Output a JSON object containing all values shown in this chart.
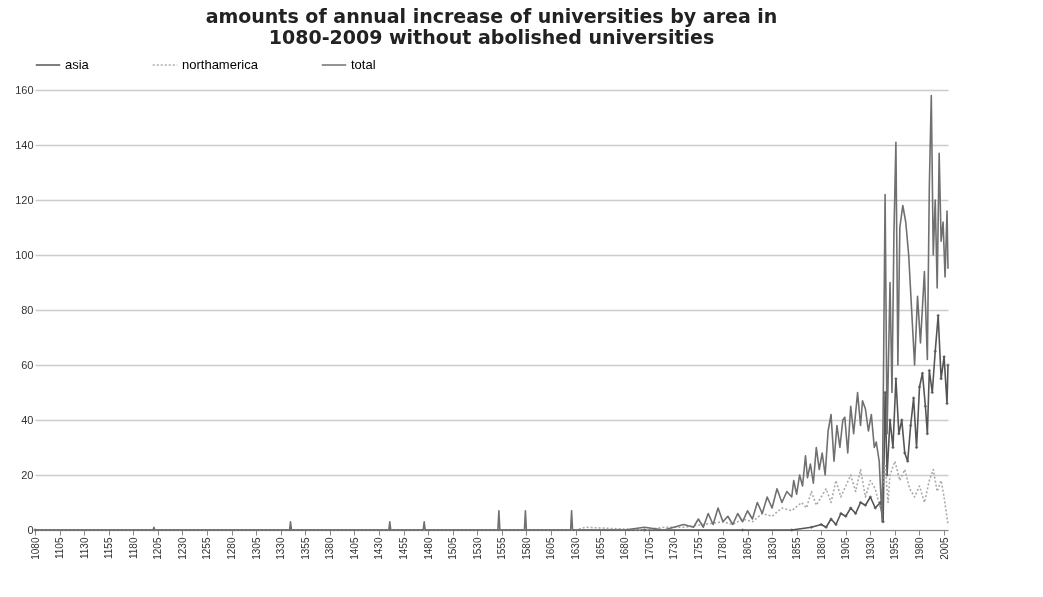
{
  "chart_data": {
    "type": "line",
    "title": "amounts of annual increase of universities by area in\n1080-2009 without abolished universities",
    "xlim": [
      1080,
      2009
    ],
    "xticks": [
      1080,
      1105,
      1130,
      1155,
      1180,
      1205,
      1230,
      1255,
      1280,
      1305,
      1330,
      1355,
      1380,
      1405,
      1430,
      1455,
      1480,
      1505,
      1530,
      1555,
      1580,
      1605,
      1630,
      1655,
      1680,
      1705,
      1730,
      1755,
      1780,
      1805,
      1830,
      1855,
      1880,
      1905,
      1930,
      1955,
      1980,
      2005
    ],
    "ylim": [
      0,
      160
    ],
    "yticks": [
      0,
      20,
      40,
      60,
      80,
      100,
      120,
      140,
      160
    ],
    "grid": "y",
    "legend": "top",
    "series": [
      {
        "name": "asia",
        "color": "#555555",
        "marker": "diamond",
        "line_style": "solid",
        "x": [
          1080,
          1700,
          1800,
          1850,
          1870,
          1880,
          1885,
          1890,
          1895,
          1900,
          1905,
          1910,
          1915,
          1920,
          1925,
          1930,
          1935,
          1940,
          1943,
          1945,
          1947,
          1950,
          1953,
          1956,
          1959,
          1962,
          1965,
          1968,
          1971,
          1974,
          1977,
          1980,
          1983,
          1986,
          1988,
          1990,
          1993,
          1996,
          1999,
          2002,
          2005,
          2008,
          2009
        ],
        "values": [
          0,
          0,
          0,
          0,
          1,
          2,
          1,
          4,
          2,
          6,
          5,
          8,
          6,
          10,
          9,
          12,
          8,
          10,
          3,
          50,
          20,
          40,
          30,
          55,
          35,
          40,
          28,
          25,
          38,
          48,
          30,
          52,
          57,
          45,
          35,
          58,
          50,
          65,
          78,
          55,
          63,
          46,
          60
        ]
      },
      {
        "name": "northamerica",
        "color": "#aaaaaa",
        "line_style": "dotted",
        "x": [
          1080,
          1630,
          1640,
          1700,
          1720,
          1740,
          1760,
          1780,
          1790,
          1800,
          1810,
          1820,
          1830,
          1840,
          1850,
          1860,
          1865,
          1870,
          1875,
          1880,
          1885,
          1890,
          1895,
          1900,
          1905,
          1910,
          1915,
          1920,
          1925,
          1930,
          1935,
          1940,
          1945,
          1948,
          1950,
          1955,
          1960,
          1965,
          1970,
          1975,
          1980,
          1985,
          1990,
          1994,
          1998,
          2002,
          2005,
          2009
        ],
        "values": [
          0,
          0,
          1,
          0,
          1,
          1,
          2,
          3,
          2,
          4,
          3,
          6,
          5,
          8,
          7,
          10,
          8,
          14,
          9,
          12,
          15,
          10,
          18,
          12,
          16,
          20,
          14,
          22,
          12,
          18,
          15,
          8,
          24,
          10,
          20,
          25,
          18,
          22,
          15,
          12,
          16,
          10,
          18,
          22,
          14,
          18,
          12,
          2
        ]
      },
      {
        "name": "total",
        "color": "#707070",
        "line_style": "solid",
        "x": [
          1080,
          1200,
          1201,
          1202,
          1300,
          1339,
          1340,
          1341,
          1440,
          1441,
          1442,
          1475,
          1476,
          1477,
          1551,
          1552,
          1553,
          1578,
          1579,
          1580,
          1625,
          1626,
          1627,
          1680,
          1700,
          1720,
          1740,
          1750,
          1755,
          1760,
          1765,
          1770,
          1775,
          1780,
          1785,
          1790,
          1795,
          1800,
          1805,
          1810,
          1815,
          1820,
          1825,
          1830,
          1835,
          1840,
          1845,
          1850,
          1852,
          1855,
          1858,
          1861,
          1864,
          1866,
          1869,
          1872,
          1875,
          1878,
          1881,
          1884,
          1887,
          1890,
          1893,
          1896,
          1899,
          1902,
          1904,
          1907,
          1910,
          1913,
          1917,
          1920,
          1922,
          1925,
          1928,
          1931,
          1934,
          1936,
          1939,
          1942,
          1945,
          1947,
          1950,
          1952,
          1954,
          1956,
          1958,
          1960,
          1963,
          1966,
          1969,
          1972,
          1975,
          1978,
          1981,
          1985,
          1988,
          1990,
          1992,
          1994,
          1996,
          1998,
          2000,
          2002,
          2004,
          2006,
          2008,
          2009
        ],
        "values": [
          0,
          0,
          1,
          0,
          0,
          0,
          3,
          0,
          0,
          3,
          0,
          0,
          3,
          0,
          0,
          7,
          0,
          0,
          7,
          0,
          0,
          7,
          0,
          0,
          1,
          0,
          2,
          1,
          4,
          1,
          6,
          2,
          8,
          3,
          5,
          2,
          6,
          3,
          7,
          4,
          10,
          6,
          12,
          8,
          15,
          10,
          14,
          12,
          18,
          13,
          20,
          16,
          27,
          19,
          24,
          17,
          30,
          22,
          28,
          20,
          36,
          42,
          25,
          38,
          30,
          40,
          41,
          28,
          45,
          35,
          50,
          38,
          47,
          44,
          36,
          42,
          30,
          32,
          25,
          3,
          122,
          35,
          90,
          50,
          108,
          141,
          60,
          110,
          118,
          112,
          100,
          80,
          60,
          85,
          68,
          94,
          62,
          125,
          158,
          100,
          120,
          88,
          137,
          105,
          112,
          92,
          116,
          95
        ]
      }
    ]
  }
}
